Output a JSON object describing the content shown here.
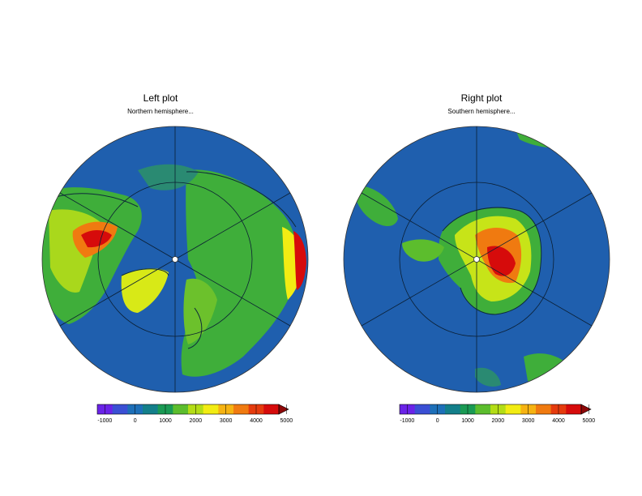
{
  "maps": [
    {
      "title": "Left plot",
      "subtitle": "Northern hemisphere...",
      "projection": "polar stereographic",
      "hemisphere": "north"
    },
    {
      "title": "Right plot",
      "subtitle": "Southern hemisphere...",
      "projection": "polar stereographic",
      "hemisphere": "south"
    }
  ],
  "colorbar": {
    "ticks": [
      "-1000",
      "0",
      "1000",
      "2000",
      "3000",
      "4000",
      "5000"
    ],
    "colors": [
      "#6a23e8",
      "#3a4fd4",
      "#1d6fb8",
      "#137f8a",
      "#1a9a54",
      "#5cbd2d",
      "#b3dd16",
      "#f2ec13",
      "#f6b312",
      "#f07a10",
      "#e53b0d",
      "#d60b0b",
      "#8d0808"
    ],
    "extend": "max"
  },
  "ocean_color": "#1f5fae"
}
